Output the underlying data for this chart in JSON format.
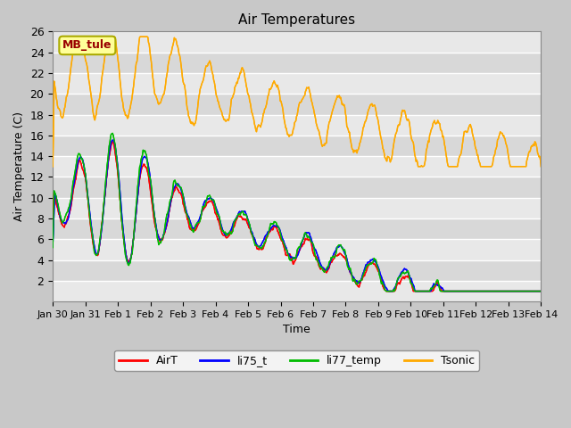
{
  "title": "Air Temperatures",
  "ylabel": "Air Temperature (C)",
  "xlabel": "Time",
  "station_label": "MB_tule",
  "ylim": [
    0,
    26
  ],
  "yticks": [
    2,
    4,
    6,
    8,
    10,
    12,
    14,
    16,
    18,
    20,
    22,
    24,
    26
  ],
  "xtick_labels": [
    "Jan 30",
    "Jan 31",
    "Feb 1",
    "Feb 2",
    "Feb 3",
    "Feb 4",
    "Feb 5",
    "Feb 6",
    "Feb 7",
    "Feb 8",
    "Feb 9",
    "Feb 10",
    "Feb 11",
    "Feb 12",
    "Feb 13",
    "Feb 14"
  ],
  "colors": {
    "AirT": "#ff0000",
    "li75_t": "#0000ff",
    "li77_temp": "#00bb00",
    "Tsonic": "#ffaa00"
  },
  "bg_color": "#e8e8e8",
  "plot_bg_color": "#e0e0e0",
  "title_color": "#000000",
  "station_label_color": "#990000",
  "station_label_bg": "#ffff99",
  "station_label_edge": "#aaaa00",
  "grid_color": "#ffffff",
  "fig_bg_color": "#c8c8c8"
}
